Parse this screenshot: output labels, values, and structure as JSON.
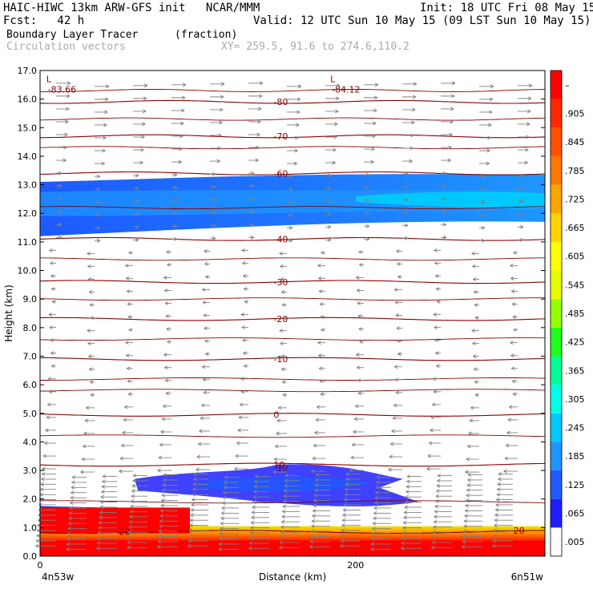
{
  "header": {
    "line1_left": "HAIC-HIWC 13km ARW-GFS init   NCAR/MMM",
    "line1_right": "Init: 18 UTC Fri 08 May 15",
    "line2_left": "Fcst:   42 h",
    "line2_right": "Valid: 12 UTC Sun 10 May 15 (09 LST Sun 10 May 15)",
    "field_name": "Boundary Layer Tracer",
    "field_units": "(fraction)",
    "vector_name": "Circulation vectors",
    "xy_text": "XY= 259.5, 91.6 to 274.6,110.2"
  },
  "chart_data": {
    "type": "heatmap",
    "xlabel": "Distance (km)",
    "ylabel": "Height (km)",
    "xlim": [
      0,
      320
    ],
    "ylim": [
      0,
      17
    ],
    "x_ticks": [
      {
        "value": 0,
        "label": "0"
      },
      {
        "value": 200,
        "label": "200"
      }
    ],
    "x_end_labels": {
      "left": "4n53w",
      "right": "6n51w"
    },
    "y_ticks": [
      "0.0",
      "1.0",
      "2.0",
      "3.0",
      "4.0",
      "5.0",
      "6.0",
      "7.0",
      "8.0",
      "9.0",
      "10.0",
      "11.0",
      "12.0",
      "13.0",
      "14.0",
      "15.0",
      "16.0",
      "17.0"
    ],
    "colorbar": {
      "labels": [
        ".005",
        ".065",
        ".125",
        ".185",
        ".245",
        ".305",
        ".365",
        ".425",
        ".485",
        ".545",
        ".605",
        ".665",
        ".725",
        ".785",
        ".845",
        ".905",
        "–"
      ],
      "colors": [
        "#ffffff",
        "#1e1eff",
        "#1e5aff",
        "#1e96ff",
        "#00c8ff",
        "#00ffe6",
        "#00ff96",
        "#1eff1e",
        "#96ff00",
        "#e6ff00",
        "#ffff00",
        "#ffd200",
        "#ffa500",
        "#ff7800",
        "#ff5000",
        "#ff2800",
        "#ff0000"
      ]
    },
    "isotherms": [
      {
        "value": -80,
        "label": "-80",
        "height": 15.9
      },
      {
        "value": -70,
        "label": "-70",
        "height": 14.7
      },
      {
        "value": -60,
        "label": "-60",
        "height": 13.4
      },
      {
        "value": -40,
        "label": "-40",
        "height": 11.1
      },
      {
        "value": -30,
        "label": "-30",
        "height": 9.6
      },
      {
        "value": -20,
        "label": "-20",
        "height": 8.3
      },
      {
        "value": -10,
        "label": "-10",
        "height": 6.9
      },
      {
        "value": 0,
        "label": "0",
        "height": 4.95
      },
      {
        "value": 10,
        "label": "10",
        "height": 3.2
      },
      {
        "value": 20,
        "label": "20",
        "height": 0.85
      }
    ],
    "extra_contours": [
      16.3,
      15.3,
      14.3,
      12.2,
      10.4,
      9.0,
      7.6,
      6.2,
      5.8,
      4.2,
      1.9
    ],
    "minima": [
      {
        "label": "L",
        "value": "-83.66",
        "x": 10,
        "y": 16.6
      },
      {
        "label": "L",
        "value": "-84.12",
        "x": 190,
        "y": 16.6
      }
    ],
    "tracer_regions": [
      {
        "name": "upper-layer",
        "level": ".065",
        "x_range": [
          0,
          320
        ],
        "y_range": [
          11.3,
          13.4
        ]
      },
      {
        "name": "upper-core",
        "level": ".185",
        "x_range": [
          0,
          320
        ],
        "y_range": [
          12.0,
          12.7
        ]
      },
      {
        "name": "mid-cloud",
        "level": ".065",
        "x_range": [
          60,
          240
        ],
        "y_range": [
          1.6,
          3.2
        ]
      },
      {
        "name": "boundary-layer",
        "level": ".905",
        "x_range": [
          0,
          320
        ],
        "y_range": [
          0.0,
          1.5
        ]
      }
    ]
  }
}
